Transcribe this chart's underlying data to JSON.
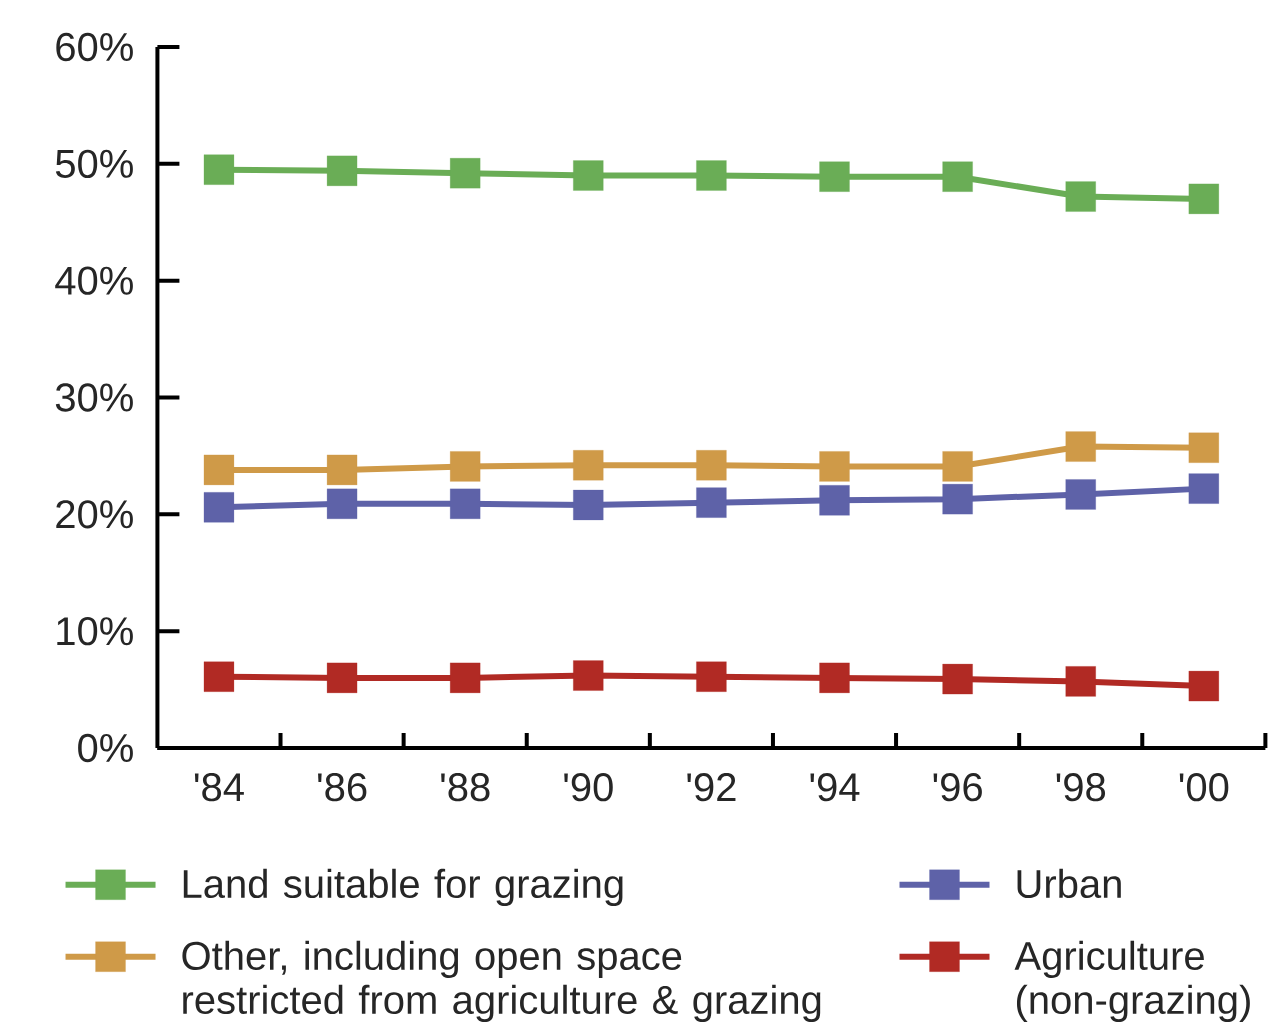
{
  "chart_data": {
    "type": "line",
    "categories": [
      "'84",
      "'86",
      "'88",
      "'90",
      "'92",
      "'94",
      "'96",
      "'98",
      "'00"
    ],
    "series": [
      {
        "name": "Land suitable for grazing",
        "color": "#6aad56",
        "values": [
          49.5,
          49.4,
          49.2,
          49.0,
          49.0,
          48.9,
          48.9,
          47.2,
          47.0
        ]
      },
      {
        "name": "Urban",
        "color": "#5e62a8",
        "values": [
          20.6,
          20.9,
          20.9,
          20.8,
          21.0,
          21.2,
          21.3,
          21.7,
          22.2
        ]
      },
      {
        "name": "Other, including open space restricted from agriculture & grazing",
        "color": "#cf9a48",
        "values": [
          23.8,
          23.8,
          24.1,
          24.2,
          24.2,
          24.1,
          24.1,
          25.8,
          25.7
        ]
      },
      {
        "name": "Agriculture (non-grazing)",
        "color": "#b12a24",
        "values": [
          6.1,
          6.0,
          6.0,
          6.2,
          6.1,
          6.0,
          5.9,
          5.7,
          5.3
        ]
      }
    ],
    "ylim": [
      0,
      60
    ],
    "yticks": [
      {
        "value": 0,
        "label": "0%"
      },
      {
        "value": 10,
        "label": "10%"
      },
      {
        "value": 20,
        "label": "20%"
      },
      {
        "value": 30,
        "label": "30%"
      },
      {
        "value": 40,
        "label": "40%"
      },
      {
        "value": 50,
        "label": "50%"
      },
      {
        "value": 60,
        "label": "60%"
      }
    ],
    "grid": false,
    "legend": "bottom",
    "marker": "square",
    "line_style": "solid"
  }
}
